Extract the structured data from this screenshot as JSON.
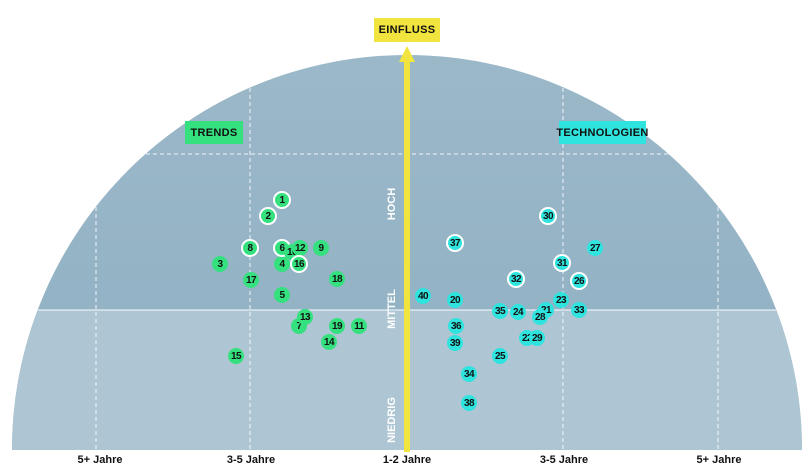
{
  "header": {
    "axis_label": "EINFLUSS"
  },
  "quadrants": {
    "left": "TRENDS",
    "right": "TECHNOLOGIEN"
  },
  "levels": {
    "high": "HOCH",
    "mid": "MITTEL",
    "low": "NIEDRIG"
  },
  "x_labels": [
    "5+ Jahre",
    "3-5 Jahre",
    "1-2 Jahre",
    "3-5 Jahre",
    "5+ Jahre"
  ],
  "colors": {
    "trend": "#35e07f",
    "technology": "#2fe3de",
    "axis": "#f1e43e",
    "dome": "#93b3c6"
  },
  "points": [
    {
      "id": "1",
      "type": "trend",
      "highlight": true
    },
    {
      "id": "2",
      "type": "trend",
      "highlight": true
    },
    {
      "id": "3",
      "type": "trend",
      "highlight": false
    },
    {
      "id": "4",
      "type": "trend",
      "highlight": false
    },
    {
      "id": "5",
      "type": "trend",
      "highlight": false
    },
    {
      "id": "6",
      "type": "trend",
      "highlight": true
    },
    {
      "id": "7",
      "type": "trend",
      "highlight": false
    },
    {
      "id": "8",
      "type": "trend",
      "highlight": true
    },
    {
      "id": "9",
      "type": "trend",
      "highlight": false
    },
    {
      "id": "10",
      "type": "trend",
      "highlight": false
    },
    {
      "id": "11",
      "type": "trend",
      "highlight": false
    },
    {
      "id": "12",
      "type": "trend",
      "highlight": false
    },
    {
      "id": "13",
      "type": "trend",
      "highlight": false
    },
    {
      "id": "14",
      "type": "trend",
      "highlight": false
    },
    {
      "id": "15",
      "type": "trend",
      "highlight": false
    },
    {
      "id": "16",
      "type": "trend",
      "highlight": true
    },
    {
      "id": "17",
      "type": "trend",
      "highlight": false
    },
    {
      "id": "18",
      "type": "trend",
      "highlight": false
    },
    {
      "id": "19",
      "type": "trend",
      "highlight": false
    },
    {
      "id": "20",
      "type": "technology",
      "highlight": false
    },
    {
      "id": "21",
      "type": "technology",
      "highlight": false
    },
    {
      "id": "22",
      "type": "technology",
      "highlight": false
    },
    {
      "id": "23",
      "type": "technology",
      "highlight": false
    },
    {
      "id": "24",
      "type": "technology",
      "highlight": false
    },
    {
      "id": "25",
      "type": "technology",
      "highlight": false
    },
    {
      "id": "26",
      "type": "technology",
      "highlight": true
    },
    {
      "id": "27",
      "type": "technology",
      "highlight": false
    },
    {
      "id": "28",
      "type": "technology",
      "highlight": false
    },
    {
      "id": "29",
      "type": "technology",
      "highlight": false
    },
    {
      "id": "30",
      "type": "technology",
      "highlight": true
    },
    {
      "id": "31",
      "type": "technology",
      "highlight": true
    },
    {
      "id": "32",
      "type": "technology",
      "highlight": true
    },
    {
      "id": "33",
      "type": "technology",
      "highlight": false
    },
    {
      "id": "34",
      "type": "technology",
      "highlight": false
    },
    {
      "id": "35",
      "type": "technology",
      "highlight": false
    },
    {
      "id": "36",
      "type": "technology",
      "highlight": false
    },
    {
      "id": "37",
      "type": "technology",
      "highlight": true
    },
    {
      "id": "38",
      "type": "technology",
      "highlight": false
    },
    {
      "id": "39",
      "type": "technology",
      "highlight": false
    },
    {
      "id": "40",
      "type": "technology",
      "highlight": false
    }
  ]
}
